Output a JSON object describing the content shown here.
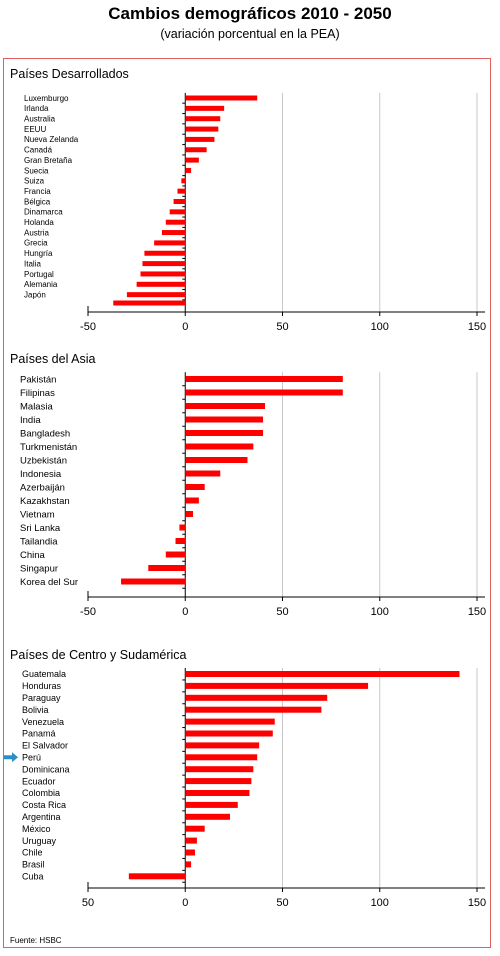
{
  "header": {
    "title": "Cambios demográficos 2010 - 2050",
    "subtitle": "(variación porcentual en la PEA)"
  },
  "source": "Fuente: HSBC",
  "colors": {
    "bar": "#ff0000",
    "grid": "#c8c8c8",
    "frame": "#e06060",
    "arrow": "#2a8fc6"
  },
  "chart_data": [
    {
      "type": "bar",
      "orientation": "horizontal",
      "title": "Países Desarrollados",
      "categories": [
        "Luxemburgo",
        "Irlanda",
        "Australia",
        "EEUU",
        "Nueva Zelanda",
        "Canadá",
        "Gran Bretaña",
        "Suecia",
        "Suiza",
        "Francia",
        "Bélgica",
        "Dinamarca",
        "Holanda",
        "Austria",
        "Grecia",
        "Hungría",
        "Italia",
        "Portugal",
        "Alemania",
        "Japón"
      ],
      "values": [
        37,
        20,
        18,
        17,
        15,
        11,
        7,
        3,
        -2,
        -4,
        -6,
        -8,
        -10,
        -12,
        -16,
        -21,
        -22,
        -23,
        -25,
        -30
      ],
      "extra_bar_below": -37,
      "xlim": [
        -50,
        150
      ],
      "xticks": [
        "-50",
        "0",
        "50",
        "100",
        "150"
      ],
      "grid": true
    },
    {
      "type": "bar",
      "orientation": "horizontal",
      "title": "Países del Asia",
      "categories": [
        "Pakistán",
        "Filipinas",
        "Malasia",
        "India",
        "Bangladesh",
        "Turkmenistán",
        "Uzbekistán",
        "Indonesia",
        "Azerbaiján",
        "Kazakhstan",
        "Vietnam",
        "Sri Lanka",
        "Tailandia",
        "China",
        "Singapur",
        "Korea del Sur"
      ],
      "values": [
        81,
        81,
        41,
        40,
        40,
        35,
        32,
        18,
        10,
        7,
        4,
        -3,
        -5,
        -10,
        -19,
        -33
      ],
      "xlim": [
        -50,
        150
      ],
      "xticks": [
        "-50",
        "0",
        "50",
        "100",
        "150"
      ],
      "grid": true
    },
    {
      "type": "bar",
      "orientation": "horizontal",
      "title": "Países de Centro y Sudamérica",
      "categories": [
        "Guatemala",
        "Honduras",
        "Paraguay",
        "Bolivia",
        "Venezuela",
        "Panamá",
        "El Salvador",
        "Perú",
        "Dominicana",
        "Ecuador",
        "Colombia",
        "Costa Rica",
        "Argentina",
        "México",
        "Uruguay",
        "Chile",
        "Brasil",
        "Cuba"
      ],
      "values": [
        141,
        94,
        73,
        70,
        46,
        45,
        38,
        37,
        35,
        34,
        33,
        27,
        23,
        10,
        6,
        5,
        3,
        -29
      ],
      "highlight": "Perú",
      "xlim": [
        -50,
        150
      ],
      "xticks": [
        "50",
        "0",
        "50",
        "100",
        "150"
      ],
      "grid": true
    }
  ]
}
